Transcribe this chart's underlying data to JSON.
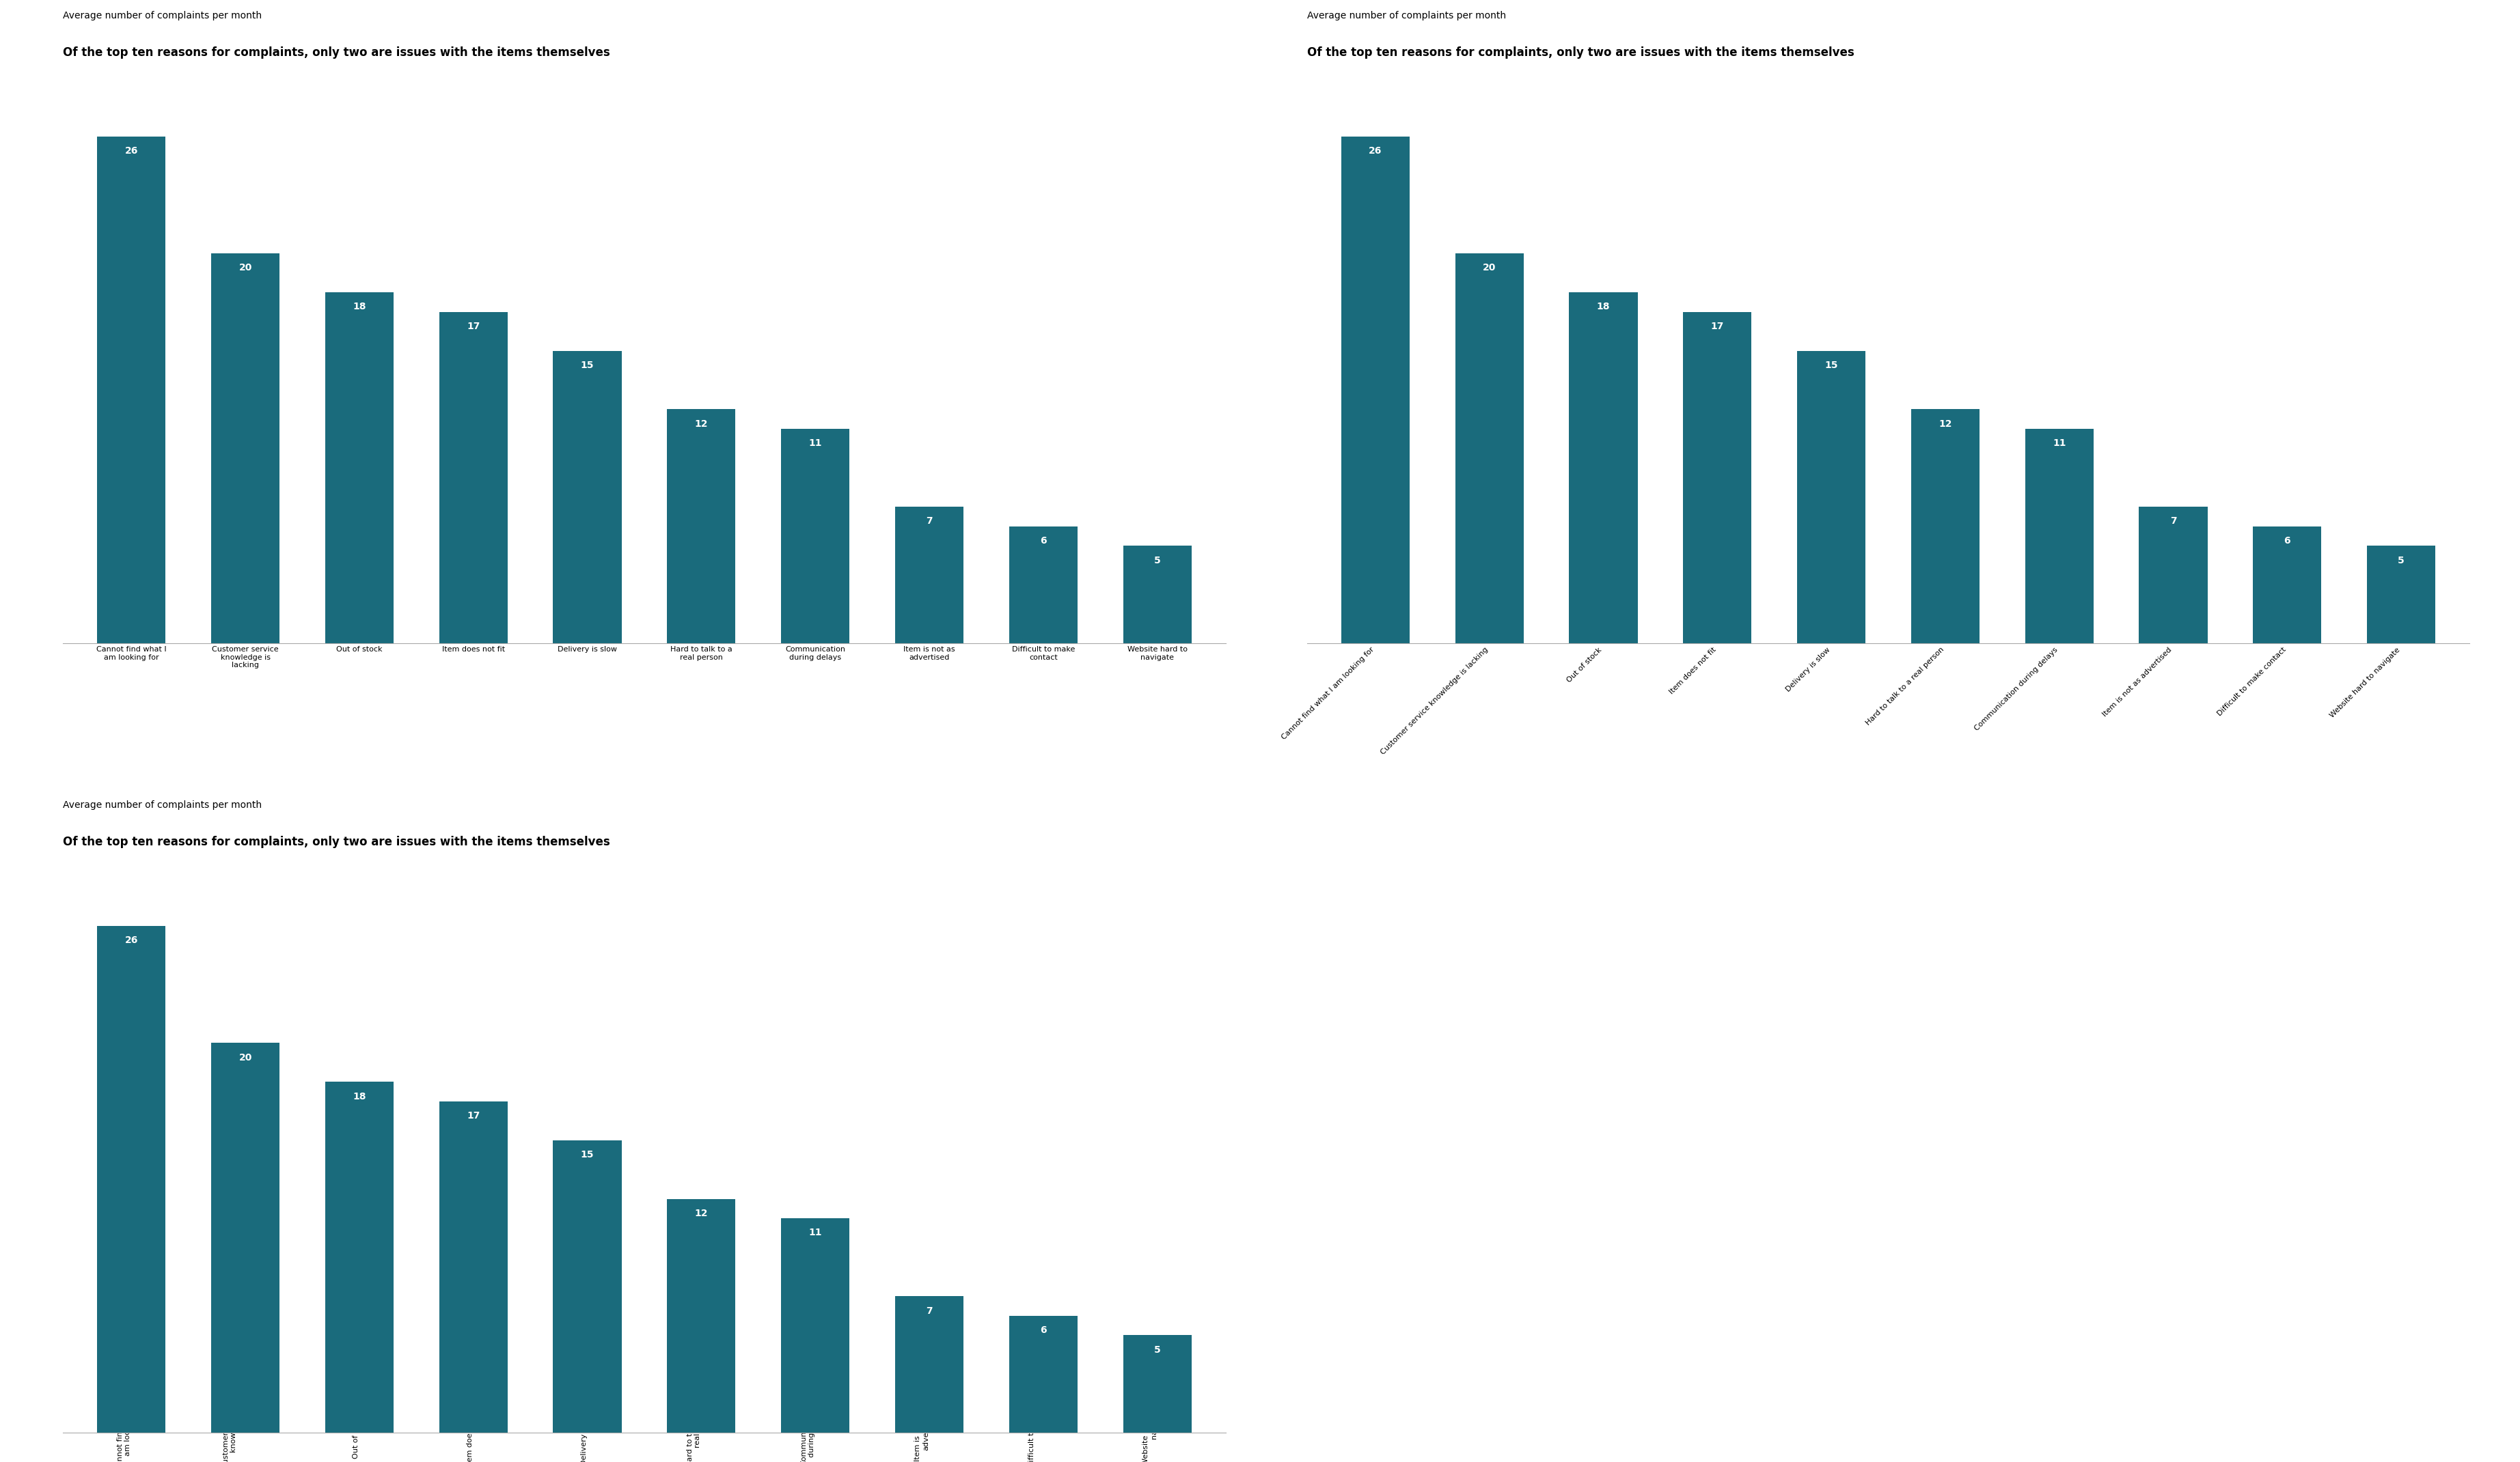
{
  "title": "Of the top ten reasons for complaints, only two are issues with the items themselves",
  "subtitle": "Average number of complaints per month",
  "categories_horizontal": [
    "Cannot find what I\nam looking for",
    "Customer service\nknowledge is\nlacking",
    "Out of stock",
    "Item does not fit",
    "Delivery is slow",
    "Hard to talk to a\nreal person",
    "Communication\nduring delays",
    "Item is not as\nadvertised",
    "Difficult to make\ncontact",
    "Website hard to\nnavigate"
  ],
  "categories_diagonal": [
    "Cannot find what I am looking for",
    "Customer service knowledge is lacking",
    "Out of stock",
    "Item does not fit",
    "Delivery is slow",
    "Hard to talk to a real person",
    "Communication during delays",
    "Item is not as advertised",
    "Difficult to make contact",
    "Website hard to navigate"
  ],
  "categories_vertical": [
    "Cannot find what I\nam looking for",
    "Customer service\nknowledge is\nlacking",
    "Out of stock",
    "Item does not fit",
    "Delivery is slow",
    "Hard to talk to a\nreal person",
    "Communication\nduring delays",
    "Item is not as\nadvertised",
    "Difficult to make\ncontact",
    "Website hard to\nnavigate"
  ],
  "values": [
    26,
    20,
    18,
    17,
    15,
    12,
    11,
    7,
    6,
    5
  ],
  "bar_color": "#1a6b7c",
  "value_color": "#ffffff",
  "title_fontsize": 12,
  "subtitle_fontsize": 10,
  "value_fontsize": 10,
  "label_fontsize": 8,
  "ylim": [
    0,
    30
  ],
  "background_color": "#ffffff"
}
